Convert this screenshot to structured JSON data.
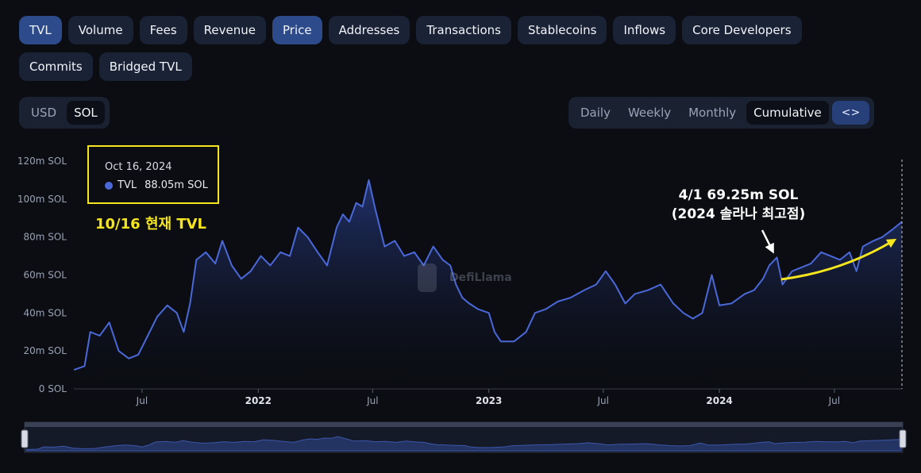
{
  "tabs_row1": [
    "TVL",
    "Volume",
    "Fees",
    "Revenue",
    "Price",
    "Addresses",
    "Transactions",
    "Stablecoins",
    "Inflows",
    "Core Developers"
  ],
  "tabs_row2": [
    "Commits",
    "Bridged TVL"
  ],
  "active_tabs": [
    "TVL",
    "Price"
  ],
  "currency": {
    "options": [
      "USD",
      "SOL"
    ],
    "selected": "SOL"
  },
  "interval": {
    "options": [
      "Daily",
      "Weekly",
      "Monthly",
      "Cumulative"
    ],
    "selected": "Cumulative",
    "embed_label": "<>"
  },
  "tooltip": {
    "date": "Oct 16, 2024",
    "series": "TVL",
    "value": "88.05m SOL"
  },
  "annotations": {
    "current": "10/16 현재 TVL",
    "peak_line1": "4/1 69.25m SOL",
    "peak_line2": "(2024 솔라나 최고점)"
  },
  "watermark": "DefiLlama",
  "colors": {
    "line": "#4a68d8",
    "highlight": "#f5e51e",
    "active_tab": "#2d4a8a"
  },
  "chart_data": {
    "type": "area",
    "title": "",
    "xlabel": "",
    "ylabel": "",
    "unit": "m SOL",
    "ylim": [
      0,
      120
    ],
    "yticks": [
      0,
      20,
      40,
      60,
      80,
      100,
      120
    ],
    "ytick_labels": [
      "0 SOL",
      "20m SOL",
      "40m SOL",
      "60m SOL",
      "80m SOL",
      "100m SOL",
      "120m SOL"
    ],
    "xlim": [
      "2021-03-15",
      "2024-10-16"
    ],
    "xticks": [
      {
        "date": "2021-07-01",
        "label": "Jul",
        "bold": false
      },
      {
        "date": "2022-01-01",
        "label": "2022",
        "bold": true
      },
      {
        "date": "2022-07-01",
        "label": "Jul",
        "bold": false
      },
      {
        "date": "2023-01-01",
        "label": "2023",
        "bold": true
      },
      {
        "date": "2023-07-01",
        "label": "Jul",
        "bold": false
      },
      {
        "date": "2024-01-01",
        "label": "2024",
        "bold": true
      },
      {
        "date": "2024-07-01",
        "label": "Jul",
        "bold": false
      }
    ],
    "series": [
      {
        "name": "TVL",
        "points": [
          [
            "2021-03-15",
            10
          ],
          [
            "2021-04-01",
            12
          ],
          [
            "2021-04-10",
            30
          ],
          [
            "2021-04-25",
            28
          ],
          [
            "2021-05-10",
            35
          ],
          [
            "2021-05-25",
            20
          ],
          [
            "2021-06-10",
            16
          ],
          [
            "2021-06-25",
            18
          ],
          [
            "2021-07-10",
            28
          ],
          [
            "2021-07-25",
            38
          ],
          [
            "2021-08-10",
            44
          ],
          [
            "2021-08-25",
            40
          ],
          [
            "2021-09-05",
            30
          ],
          [
            "2021-09-15",
            45
          ],
          [
            "2021-09-25",
            68
          ],
          [
            "2021-10-10",
            72
          ],
          [
            "2021-10-25",
            66
          ],
          [
            "2021-11-05",
            78
          ],
          [
            "2021-11-20",
            65
          ],
          [
            "2021-12-05",
            58
          ],
          [
            "2021-12-20",
            62
          ],
          [
            "2022-01-05",
            70
          ],
          [
            "2022-01-20",
            65
          ],
          [
            "2022-02-05",
            72
          ],
          [
            "2022-02-20",
            70
          ],
          [
            "2022-03-05",
            85
          ],
          [
            "2022-03-20",
            80
          ],
          [
            "2022-04-05",
            72
          ],
          [
            "2022-04-20",
            65
          ],
          [
            "2022-05-05",
            85
          ],
          [
            "2022-05-15",
            92
          ],
          [
            "2022-05-25",
            88
          ],
          [
            "2022-06-05",
            98
          ],
          [
            "2022-06-15",
            96
          ],
          [
            "2022-06-25",
            110
          ],
          [
            "2022-07-05",
            95
          ],
          [
            "2022-07-20",
            75
          ],
          [
            "2022-08-05",
            78
          ],
          [
            "2022-08-20",
            70
          ],
          [
            "2022-09-05",
            72
          ],
          [
            "2022-09-20",
            65
          ],
          [
            "2022-10-05",
            75
          ],
          [
            "2022-10-20",
            68
          ],
          [
            "2022-11-01",
            65
          ],
          [
            "2022-11-10",
            55
          ],
          [
            "2022-11-20",
            48
          ],
          [
            "2022-12-01",
            45
          ],
          [
            "2022-12-15",
            42
          ],
          [
            "2023-01-01",
            40
          ],
          [
            "2023-01-10",
            30
          ],
          [
            "2023-01-20",
            25
          ],
          [
            "2023-02-10",
            25
          ],
          [
            "2023-03-01",
            30
          ],
          [
            "2023-03-15",
            40
          ],
          [
            "2023-04-01",
            42
          ],
          [
            "2023-04-20",
            46
          ],
          [
            "2023-05-10",
            48
          ],
          [
            "2023-06-01",
            52
          ],
          [
            "2023-06-20",
            55
          ],
          [
            "2023-07-05",
            62
          ],
          [
            "2023-07-20",
            55
          ],
          [
            "2023-08-05",
            45
          ],
          [
            "2023-08-20",
            50
          ],
          [
            "2023-09-10",
            52
          ],
          [
            "2023-09-30",
            55
          ],
          [
            "2023-10-10",
            50
          ],
          [
            "2023-10-20",
            45
          ],
          [
            "2023-11-05",
            40
          ],
          [
            "2023-11-20",
            37
          ],
          [
            "2023-12-05",
            40
          ],
          [
            "2023-12-20",
            60
          ],
          [
            "2024-01-01",
            44
          ],
          [
            "2024-01-20",
            45
          ],
          [
            "2024-02-10",
            50
          ],
          [
            "2024-02-25",
            52
          ],
          [
            "2024-03-10",
            58
          ],
          [
            "2024-03-20",
            65
          ],
          [
            "2024-04-01",
            69.25
          ],
          [
            "2024-04-10",
            55
          ],
          [
            "2024-04-25",
            62
          ],
          [
            "2024-05-10",
            64
          ],
          [
            "2024-05-25",
            66
          ],
          [
            "2024-06-10",
            72
          ],
          [
            "2024-06-25",
            70
          ],
          [
            "2024-07-10",
            68
          ],
          [
            "2024-07-25",
            72
          ],
          [
            "2024-08-05",
            62
          ],
          [
            "2024-08-15",
            75
          ],
          [
            "2024-09-01",
            78
          ],
          [
            "2024-09-15",
            80
          ],
          [
            "2024-10-01",
            84
          ],
          [
            "2024-10-16",
            88.05
          ]
        ]
      }
    ],
    "legend": "none",
    "grid": false
  }
}
